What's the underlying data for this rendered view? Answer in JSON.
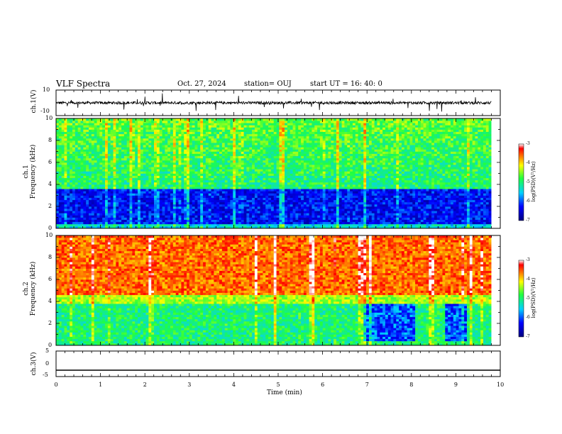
{
  "header": {
    "title": "VLF Spectra",
    "date": "Oct. 27, 2024",
    "station": "station= OUJ",
    "start": "start UT =  16: 40: 0"
  },
  "chart_data": [
    {
      "type": "line",
      "panel": "ch1-waveform",
      "ylabel": "ch.1(V)",
      "yticks": [
        "10",
        "-10"
      ],
      "ylim": [
        -10,
        10
      ],
      "xlim": [
        0,
        10
      ],
      "description_of_trace": "noisy waveform centered near 0 V with amplitude about ±1 V and occasional spikes",
      "baseline": 0
    },
    {
      "type": "heatmap",
      "panel": "ch1-spectrogram",
      "ylabel": "ch.1\nFrequency (kHz)",
      "ylabel_line1": "ch.1",
      "ylabel_line2": "Frequency (kHz)",
      "yticks": [
        "0",
        "2",
        "4",
        "6",
        "8",
        "10"
      ],
      "ylim": [
        0,
        10
      ],
      "xlim": [
        0,
        10
      ],
      "data_end_min": 9.8,
      "colorbar": {
        "label": "log(PSD)(V²/Hz)",
        "ticks": [
          "-3",
          "-4",
          "-5",
          "-6",
          "-7"
        ],
        "range": [
          -7,
          -3
        ]
      },
      "low_band_khz": [
        0.5,
        3.5
      ],
      "low_band_log_psd": -6.3,
      "high_band_log_psd": -5.0
    },
    {
      "type": "heatmap",
      "panel": "ch2-spectrogram",
      "ylabel_line1": "ch.2",
      "ylabel_line2": "Frequency (kHz)",
      "yticks": [
        "0",
        "2",
        "4",
        "6",
        "8",
        "10"
      ],
      "ylim": [
        0,
        10
      ],
      "xlim": [
        0,
        10
      ],
      "data_end_min": 9.8,
      "colorbar": {
        "label": "log(PSD)(V²/Hz)",
        "ticks": [
          "-3",
          "-4",
          "-5",
          "-6",
          "-7"
        ],
        "range": [
          -7,
          -3
        ]
      },
      "high_band_log_psd": -3.6,
      "low_band_log_psd": -5.0,
      "quiet_intervals_min": [
        [
          6.9,
          8.1
        ],
        [
          8.75,
          9.25
        ]
      ],
      "quiet_band_khz": [
        0.5,
        3.8
      ]
    },
    {
      "type": "line",
      "panel": "ch3-waveform",
      "ylabel": "ch.3(V)",
      "yticks": [
        "5",
        "0",
        "-5"
      ],
      "ylim": [
        -5,
        5
      ],
      "xlim": [
        0,
        10
      ],
      "constant_value": -2.5,
      "xlabel": "Time (min)",
      "xticks": [
        "0",
        "1",
        "2",
        "3",
        "4",
        "5",
        "6",
        "7",
        "8",
        "9",
        "10"
      ]
    }
  ]
}
